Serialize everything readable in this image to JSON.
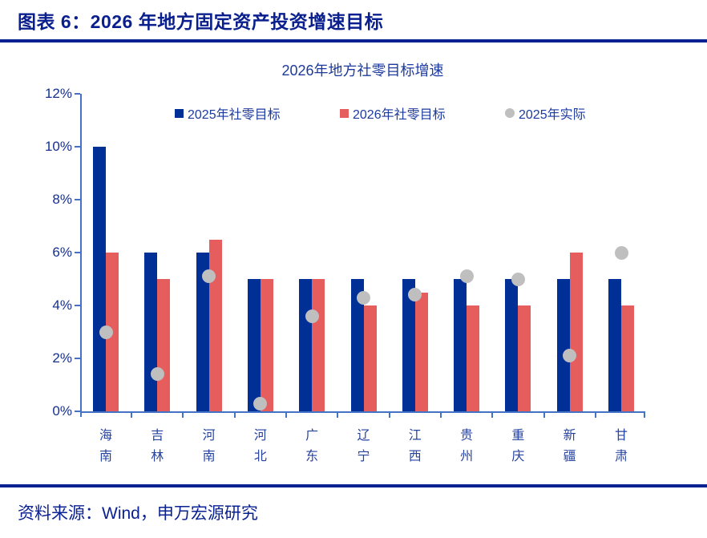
{
  "page": {
    "title": "图表 6：2026 年地方固定资产投资增速目标",
    "source": "资料来源：Wind，申万宏源研究"
  },
  "colors": {
    "title_navy": "#0a1f8e",
    "chart_text_navy": "#1c3aa0",
    "bar_blue": "#003096",
    "bar_red": "#e55d5d",
    "dot_gray": "#bfbfbf",
    "axis_line": "#4472c4"
  },
  "chart_data": {
    "type": "bar",
    "title": "2026年地方社零目标增速",
    "categories": [
      "海南",
      "吉林",
      "河南",
      "河北",
      "广东",
      "辽宁",
      "江西",
      "贵州",
      "重庆",
      "新疆",
      "甘肃"
    ],
    "series": [
      {
        "name": "2025年社零目标",
        "type": "bar",
        "color_key": "bar_blue",
        "values": [
          10,
          6,
          6,
          5,
          5,
          5,
          5,
          5,
          5,
          5,
          5
        ]
      },
      {
        "name": "2026年社零目标",
        "type": "bar",
        "color_key": "bar_red",
        "values": [
          6,
          5,
          6.5,
          5,
          5,
          4,
          4.5,
          4,
          4,
          6,
          4
        ]
      },
      {
        "name": "2025年实际",
        "type": "scatter",
        "color_key": "dot_gray",
        "values": [
          3,
          1.4,
          5.1,
          0.3,
          3.6,
          4.3,
          4.4,
          5.1,
          5,
          2.1,
          6
        ]
      }
    ],
    "ylabel": "",
    "xlabel": "",
    "ylim": [
      0,
      12
    ],
    "ytick_step": 2,
    "ytick_suffix": "%",
    "legend_position": "top",
    "grid": false
  }
}
